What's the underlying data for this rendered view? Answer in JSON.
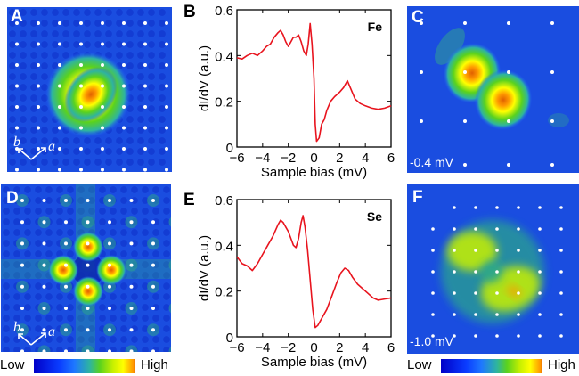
{
  "figure": {
    "panels": {
      "A": {
        "letter": "A",
        "lattice_a": "a",
        "lattice_b": "b"
      },
      "B": {
        "letter": "B"
      },
      "C": {
        "letter": "C",
        "bias_label": "-0.4 mV"
      },
      "D": {
        "letter": "D",
        "lattice_a": "a",
        "lattice_b": "b"
      },
      "E": {
        "letter": "E"
      },
      "F": {
        "letter": "F",
        "bias_label": "-1.0 mV"
      }
    },
    "colorbar": {
      "low": "Low",
      "high": "High"
    },
    "colors": {
      "curve": "#e8141e",
      "map_background": "#1a4de0",
      "lattice_dot": "#ffffff"
    }
  },
  "chart_data": [
    {
      "panel": "B",
      "type": "line",
      "title": "",
      "annotation": "Fe",
      "xlabel": "Sample bias (mV)",
      "ylabel": "dI/dV (a.u.)",
      "xlim": [
        -6,
        6
      ],
      "ylim": [
        0,
        0.6
      ],
      "xticks": [
        "-6",
        "-4",
        "-2",
        "0",
        "2",
        "4",
        "6"
      ],
      "yticks": [
        "0",
        "0.2",
        "0.4",
        "0.6"
      ],
      "grid": false,
      "series": [
        {
          "name": "Fe",
          "x": [
            -6.0,
            -5.6,
            -5.2,
            -4.8,
            -4.4,
            -4.0,
            -3.7,
            -3.4,
            -3.1,
            -2.8,
            -2.6,
            -2.4,
            -2.2,
            -2.0,
            -1.8,
            -1.6,
            -1.4,
            -1.2,
            -1.0,
            -0.8,
            -0.6,
            -0.45,
            -0.3,
            -0.15,
            0.0,
            0.1,
            0.2,
            0.4,
            0.6,
            0.8,
            1.0,
            1.3,
            1.6,
            2.0,
            2.3,
            2.6,
            2.9,
            3.2,
            3.6,
            4.0,
            4.5,
            5.0,
            5.5,
            6.0
          ],
          "y": [
            0.39,
            0.385,
            0.4,
            0.41,
            0.4,
            0.42,
            0.44,
            0.45,
            0.48,
            0.5,
            0.51,
            0.49,
            0.46,
            0.44,
            0.46,
            0.48,
            0.48,
            0.49,
            0.46,
            0.42,
            0.4,
            0.45,
            0.54,
            0.45,
            0.3,
            0.1,
            0.025,
            0.04,
            0.1,
            0.12,
            0.16,
            0.2,
            0.22,
            0.24,
            0.26,
            0.29,
            0.25,
            0.21,
            0.19,
            0.18,
            0.17,
            0.165,
            0.17,
            0.18
          ]
        }
      ]
    },
    {
      "panel": "E",
      "type": "line",
      "title": "",
      "annotation": "Se",
      "xlabel": "Sample bias (mV)",
      "ylabel": "dI/dV (a.u.)",
      "xlim": [
        -6,
        6
      ],
      "ylim": [
        0,
        0.6
      ],
      "xticks": [
        "-6",
        "-4",
        "-2",
        "0",
        "2",
        "4",
        "6"
      ],
      "yticks": [
        "0",
        "0.2",
        "0.4",
        "0.6"
      ],
      "grid": false,
      "series": [
        {
          "name": "Se",
          "x": [
            -6.0,
            -5.6,
            -5.2,
            -4.8,
            -4.4,
            -4.0,
            -3.6,
            -3.2,
            -2.8,
            -2.6,
            -2.4,
            -2.2,
            -2.0,
            -1.8,
            -1.6,
            -1.4,
            -1.2,
            -1.0,
            -0.85,
            -0.7,
            -0.5,
            -0.3,
            -0.1,
            0.1,
            0.3,
            0.6,
            1.0,
            1.4,
            1.8,
            2.1,
            2.4,
            2.7,
            3.0,
            3.4,
            3.8,
            4.2,
            4.6,
            5.0,
            5.5,
            6.0
          ],
          "y": [
            0.35,
            0.32,
            0.31,
            0.29,
            0.32,
            0.36,
            0.4,
            0.44,
            0.49,
            0.51,
            0.5,
            0.48,
            0.46,
            0.43,
            0.4,
            0.39,
            0.43,
            0.5,
            0.53,
            0.48,
            0.38,
            0.25,
            0.12,
            0.04,
            0.05,
            0.08,
            0.12,
            0.18,
            0.24,
            0.28,
            0.3,
            0.29,
            0.26,
            0.23,
            0.21,
            0.19,
            0.17,
            0.16,
            0.165,
            0.17
          ]
        }
      ]
    }
  ]
}
